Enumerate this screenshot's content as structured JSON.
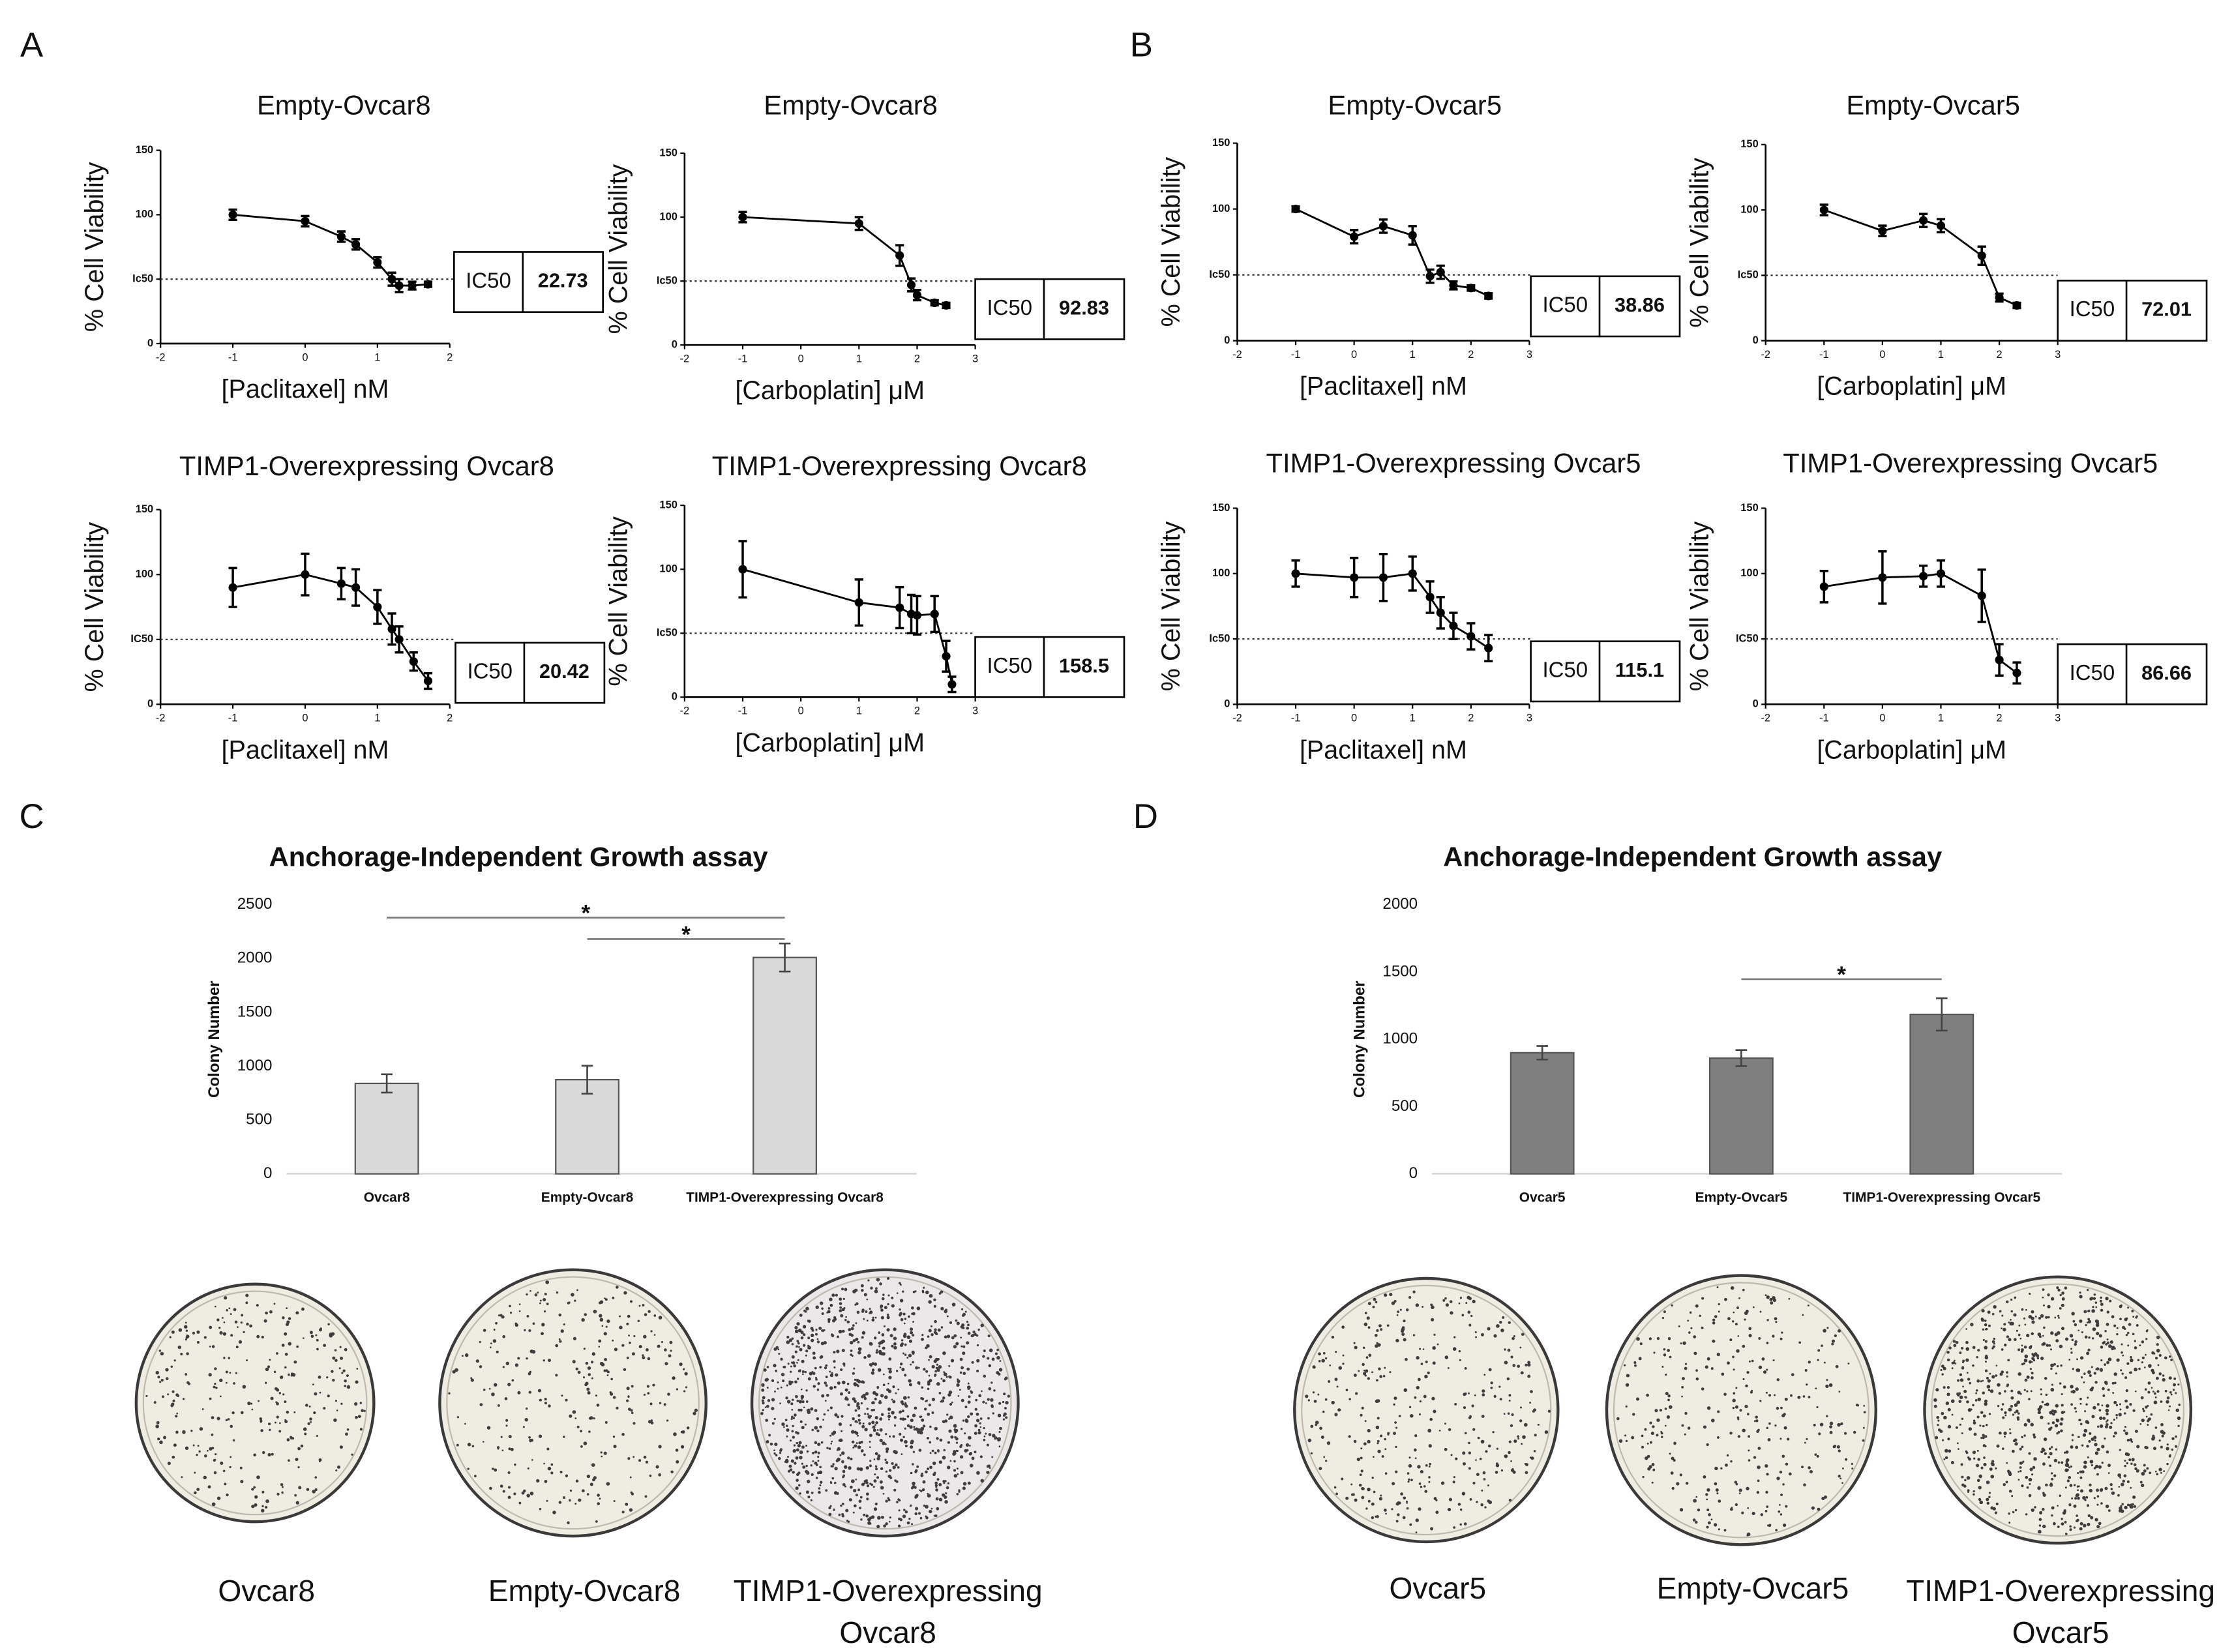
{
  "panel_labels": [
    "A",
    "B",
    "C",
    "D"
  ],
  "chart_data": [
    {
      "type": "scatter",
      "title": "Empty-Ovcar8",
      "x_label": "[Paclitaxel] nM",
      "y_label": "% Cell Viability",
      "color": "#000000",
      "x": [
        -1,
        0,
        0.5,
        0.7,
        1,
        1.2,
        1.3,
        1.48,
        1.7
      ],
      "values": [
        100,
        95,
        83,
        77,
        63,
        50,
        45,
        45,
        46
      ],
      "errors": [
        4,
        4,
        4,
        4,
        4,
        5,
        5,
        3,
        2
      ],
      "xlim": [
        -2,
        2
      ],
      "xticks": [
        -2,
        -1,
        0,
        1,
        2
      ],
      "ylim": [
        0,
        150
      ],
      "yticks": [
        0,
        {
          "value": 50,
          "label": "Ic50"
        },
        100,
        150
      ],
      "ic50_label": "IC50",
      "ic50": 22.73
    },
    {
      "type": "scatter",
      "title": "Empty-Ovcar8",
      "x_label": "[Carboplatin] μM",
      "y_label": "% Cell Viability",
      "color": "#000000",
      "x": [
        -1,
        1,
        1.7,
        1.9,
        2,
        2.3,
        2.5
      ],
      "values": [
        100,
        95,
        70,
        47,
        39,
        33,
        31
      ],
      "errors": [
        4,
        5,
        8,
        5,
        4,
        2,
        2
      ],
      "xlim": [
        -2,
        3
      ],
      "xticks": [
        -2,
        -1,
        0,
        1,
        2,
        3
      ],
      "ylim": [
        0,
        150
      ],
      "yticks": [
        0,
        {
          "value": 50,
          "label": "Ic50"
        },
        100,
        150
      ],
      "ic50_label": "IC50",
      "ic50": 92.83
    },
    {
      "type": "scatter",
      "title": "Empty-Ovcar5",
      "x_label": "[Paclitaxel] nM",
      "y_label": "% Cell Viability",
      "color": "#000000",
      "x": [
        -1,
        0,
        0.5,
        1,
        1.3,
        1.48,
        1.7,
        2,
        2.3
      ],
      "values": [
        100,
        79,
        87,
        80,
        49,
        52,
        42,
        40,
        34
      ],
      "errors": [
        2,
        5,
        5,
        7,
        5,
        5,
        3,
        2,
        2
      ],
      "xlim": [
        -2,
        3
      ],
      "xticks": [
        -2,
        -1,
        0,
        1,
        2,
        3
      ],
      "ylim": [
        0,
        150
      ],
      "yticks": [
        0,
        {
          "value": 50,
          "label": "Ic50"
        },
        100,
        150
      ],
      "ic50_label": "IC50",
      "ic50": 38.86
    },
    {
      "type": "scatter",
      "title": "Empty-Ovcar5",
      "x_label": "[Carboplatin] μM",
      "y_label": "% Cell Viability",
      "color": "#000000",
      "x": [
        -1,
        0,
        0.7,
        1,
        1.7,
        2,
        2.3
      ],
      "values": [
        100,
        84,
        92,
        88,
        65,
        33,
        27
      ],
      "errors": [
        4,
        4,
        5,
        5,
        7,
        3,
        2
      ],
      "xlim": [
        -2,
        3
      ],
      "xticks": [
        -2,
        -1,
        0,
        1,
        2,
        3
      ],
      "ylim": [
        0,
        150
      ],
      "yticks": [
        0,
        {
          "value": 50,
          "label": "Ic50"
        },
        100,
        150
      ],
      "ic50_label": "IC50",
      "ic50": 72.01
    },
    {
      "type": "scatter",
      "title": "TIMP1-Overexpressing Ovcar8",
      "x_label": "[Paclitaxel] nM",
      "y_label": "% Cell Viability",
      "color": "#000000",
      "x": [
        -1,
        0,
        0.5,
        0.7,
        1,
        1.2,
        1.3,
        1.5,
        1.7
      ],
      "values": [
        90,
        100,
        93,
        90,
        75,
        58,
        50,
        33,
        18
      ],
      "errors": [
        15,
        16,
        12,
        14,
        13,
        12,
        10,
        7,
        6
      ],
      "xlim": [
        -2,
        2
      ],
      "xticks": [
        -2,
        -1,
        0,
        1,
        2
      ],
      "ylim": [
        0,
        150
      ],
      "yticks": [
        0,
        {
          "value": 50,
          "label": "IC50"
        },
        100,
        150
      ],
      "ic50_label": "IC50",
      "ic50": 20.42
    },
    {
      "type": "scatter",
      "title": "TIMP1-Overexpressing Ovcar8",
      "x_label": "[Carboplatin] μM",
      "y_label": "% Cell Viability",
      "color": "#000000",
      "x": [
        -1,
        1,
        1.7,
        1.9,
        2,
        2.3,
        2.5,
        2.6
      ],
      "values": [
        100,
        74,
        70,
        65,
        64,
        65,
        32,
        10
      ],
      "errors": [
        22,
        18,
        16,
        15,
        15,
        14,
        12,
        6
      ],
      "xlim": [
        -2,
        3
      ],
      "xticks": [
        -2,
        -1,
        0,
        1,
        2,
        3
      ],
      "ylim": [
        0,
        150
      ],
      "yticks": [
        0,
        {
          "value": 50,
          "label": "Ic50"
        },
        100,
        150
      ],
      "ic50_label": "IC50",
      "ic50": 158.5
    },
    {
      "type": "scatter",
      "title": "TIMP1-Overexpressing Ovcar5",
      "x_label": "[Paclitaxel] nM",
      "y_label": "% Cell Viability",
      "color": "#000000",
      "x": [
        -1,
        0,
        0.5,
        1,
        1.3,
        1.48,
        1.7,
        2,
        2.3
      ],
      "values": [
        100,
        97,
        97,
        100,
        82,
        70,
        60,
        52,
        43
      ],
      "errors": [
        10,
        15,
        18,
        13,
        12,
        12,
        10,
        10,
        10
      ],
      "xlim": [
        -2,
        3
      ],
      "xticks": [
        -2,
        -1,
        0,
        1,
        2,
        3
      ],
      "ylim": [
        0,
        150
      ],
      "yticks": [
        0,
        {
          "value": 50,
          "label": "Ic50"
        },
        100,
        150
      ],
      "ic50_label": "IC50",
      "ic50": 115.1
    },
    {
      "type": "scatter",
      "title": "TIMP1-Overexpressing Ovcar5",
      "x_label": "[Carboplatin] μM",
      "y_label": "% Cell Viability",
      "color": "#000000",
      "x": [
        -1,
        0,
        0.7,
        1,
        1.7,
        2,
        2.3
      ],
      "values": [
        90,
        97,
        98,
        100,
        83,
        34,
        24
      ],
      "errors": [
        12,
        20,
        8,
        10,
        20,
        12,
        8
      ],
      "xlim": [
        -2,
        3
      ],
      "xticks": [
        -2,
        -1,
        0,
        1,
        2,
        3
      ],
      "ylim": [
        0,
        150
      ],
      "yticks": [
        0,
        {
          "value": 50,
          "label": "IC50"
        },
        100,
        150
      ],
      "ic50_label": "IC50",
      "ic50": 86.66
    },
    {
      "type": "bar",
      "title": "Anchorage-Independent Growth assay",
      "y_label": "Colony Number",
      "color": "#d9d9d9",
      "categories": [
        "Ovcar8",
        "Empty-Ovcar8",
        "TIMP1-Overexpressing Ovcar8"
      ],
      "values": [
        840,
        875,
        2010
      ],
      "errors": [
        85,
        130,
        130
      ],
      "ylim": [
        0,
        2500
      ],
      "yticks": [
        0,
        500,
        1000,
        1500,
        2000,
        2500
      ],
      "significance": [
        {
          "pair": [
            0,
            2
          ],
          "label": "*"
        },
        {
          "pair": [
            1,
            2
          ],
          "label": "*"
        }
      ]
    },
    {
      "type": "bar",
      "title": "Anchorage-Independent Growth assay",
      "y_label": "Colony Number",
      "color": "#7f7f7f",
      "categories": [
        "Ovcar5",
        "Empty-Ovcar5",
        "TIMP1-Overexpressing Ovcar5"
      ],
      "values": [
        900,
        860,
        1185
      ],
      "errors": [
        50,
        60,
        120
      ],
      "ylim": [
        0,
        2000
      ],
      "yticks": [
        0,
        500,
        1000,
        1500,
        2000
      ],
      "significance": [
        {
          "pair": [
            1,
            2
          ],
          "label": "*"
        }
      ]
    }
  ],
  "plates": [
    {
      "label_lines": [
        "Ovcar8"
      ]
    },
    {
      "label_lines": [
        "Empty-Ovcar8"
      ]
    },
    {
      "label_lines": [
        "TIMP1-Overexpressing",
        "Ovcar8"
      ]
    },
    {
      "label_lines": [
        "Ovcar5"
      ]
    },
    {
      "label_lines": [
        "Empty-Ovcar5"
      ]
    },
    {
      "label_lines": [
        "TIMP1-Overexpressing",
        "Ovcar5"
      ]
    }
  ]
}
